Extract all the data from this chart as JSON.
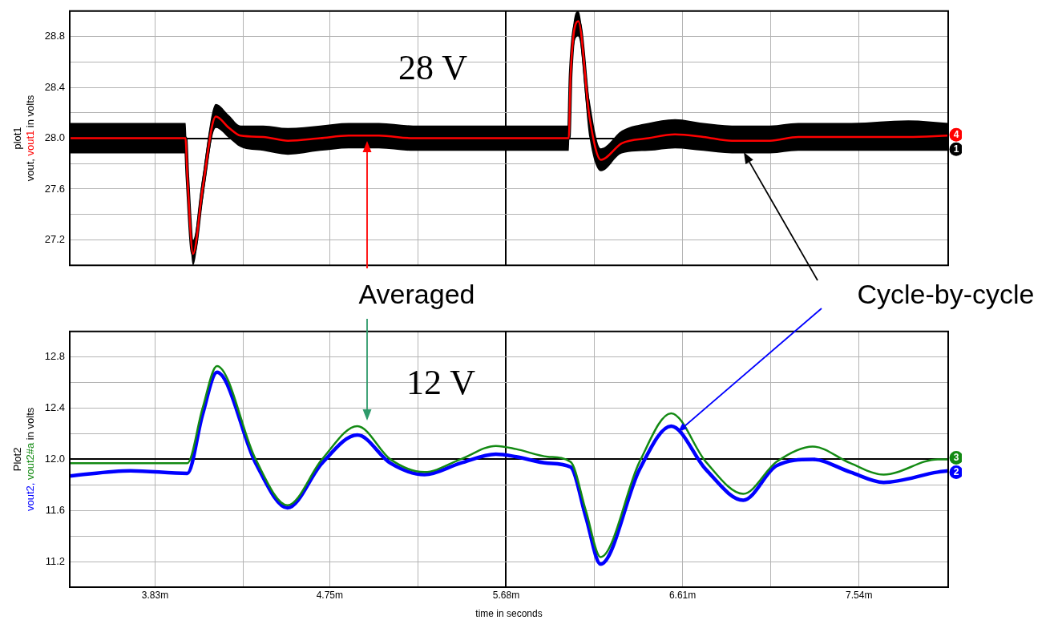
{
  "chart_data": [
    {
      "type": "line",
      "title": "plot1",
      "ylabel": "in volts",
      "x": [
        3.38,
        3.99,
        4.0,
        4.03,
        4.08,
        4.15,
        4.22,
        4.28,
        4.4,
        4.53,
        4.7,
        4.85,
        5.01,
        5.19,
        5.5,
        5.8,
        6.01,
        6.02,
        6.06,
        6.12,
        6.18,
        6.29,
        6.43,
        6.57,
        6.72,
        6.87,
        7.07,
        7.22,
        7.5,
        7.8,
        8.01
      ],
      "series": [
        {
          "name": "vout,",
          "color": "#000000",
          "values": [
            28.0,
            28.0,
            27.7,
            27.09,
            27.6,
            28.17,
            28.08,
            28.02,
            28.01,
            27.98,
            28.0,
            28.02,
            28.02,
            28.0,
            28.0,
            28.0,
            28.0,
            28.5,
            28.92,
            28.16,
            27.83,
            27.96,
            28.0,
            28.03,
            28.01,
            27.98,
            27.98,
            28.01,
            28.01,
            28.01,
            28.02
          ],
          "lower": [
            27.88,
            27.88,
            27.6,
            27.0,
            27.5,
            28.08,
            28.0,
            27.93,
            27.9,
            27.87,
            27.9,
            27.92,
            27.92,
            27.9,
            27.9,
            27.9,
            27.9,
            28.4,
            28.8,
            28.0,
            27.74,
            27.88,
            27.9,
            27.92,
            27.9,
            27.88,
            27.88,
            27.9,
            27.9,
            27.9,
            27.9
          ],
          "upper": [
            28.12,
            28.12,
            27.8,
            27.2,
            27.7,
            28.27,
            28.18,
            28.1,
            28.1,
            28.08,
            28.1,
            28.12,
            28.12,
            28.1,
            28.1,
            28.1,
            28.1,
            28.6,
            29.0,
            28.3,
            27.92,
            28.06,
            28.12,
            28.15,
            28.12,
            28.1,
            28.1,
            28.12,
            28.12,
            28.14,
            28.12
          ]
        },
        {
          "name": "vout1",
          "color": "#ff0000",
          "values": [
            28.0,
            28.0,
            27.7,
            27.09,
            27.6,
            28.17,
            28.08,
            28.02,
            28.01,
            27.98,
            28.0,
            28.02,
            28.02,
            28.0,
            28.0,
            28.0,
            28.0,
            28.5,
            28.92,
            28.16,
            27.83,
            27.96,
            28.0,
            28.03,
            28.01,
            27.98,
            27.98,
            28.01,
            28.01,
            28.01,
            28.02
          ]
        }
      ],
      "xlim": [
        3.38,
        8.01
      ],
      "xticks": [
        3.83,
        4.295,
        4.75,
        5.215,
        5.68,
        6.145,
        6.61,
        7.075,
        7.54
      ],
      "ylim": [
        27.0,
        29.0
      ],
      "yticks": [
        27.2,
        {
          "value": 27.4,
          "label": null
        },
        27.6,
        {
          "value": 27.8,
          "label": null
        },
        {
          "value": 28.0,
          "label": "28.0"
        },
        {
          "value": 28.2,
          "label": null
        },
        28.4,
        {
          "value": 28.6,
          "label": null
        },
        28.8
      ],
      "tick_labels": "y",
      "grid": true,
      "legend": "left",
      "marker": "none",
      "line_style": "solid",
      "annotations": [
        "28 V",
        "Averaged",
        "Cycle-by-cycle",
        {
          "text": "1",
          "y": 27.92
        },
        {
          "text": "4",
          "y": 28.02
        }
      ]
    },
    {
      "type": "line",
      "title": "Plot2",
      "xlabel": "time in seconds",
      "ylabel": "in volts",
      "x": [
        3.38,
        3.7,
        4.0,
        4.08,
        4.156,
        4.36,
        4.528,
        4.71,
        4.896,
        5.07,
        5.25,
        5.44,
        5.626,
        5.733,
        5.9,
        6.02,
        6.1,
        6.178,
        6.383,
        6.55,
        6.733,
        6.93,
        7.105,
        7.296,
        7.494,
        7.67,
        7.955,
        8.01
      ],
      "series": [
        {
          "name": "vout2,",
          "color": "#0000ff",
          "values": [
            11.87,
            11.91,
            11.89,
            12.35,
            12.68,
            11.97,
            11.62,
            11.97,
            12.19,
            11.97,
            11.88,
            11.97,
            12.04,
            12.02,
            11.97,
            11.94,
            11.55,
            11.18,
            11.92,
            12.26,
            11.92,
            11.68,
            11.95,
            12.0,
            11.9,
            11.82,
            11.9,
            11.91
          ]
        },
        {
          "name": "vout2#a",
          "color": "#138a13",
          "values": [
            11.97,
            11.97,
            11.97,
            12.4,
            12.73,
            12.0,
            11.64,
            12.0,
            12.26,
            12.0,
            11.9,
            12.0,
            12.105,
            12.08,
            12.02,
            11.98,
            11.6,
            11.235,
            11.98,
            12.36,
            11.98,
            11.73,
            11.98,
            12.1,
            11.97,
            11.88,
            12.0,
            12.0
          ]
        }
      ],
      "xlim": [
        3.38,
        8.01
      ],
      "xticks": [
        {
          "value": 3.83,
          "label": "3.83m"
        },
        {
          "value": 4.295,
          "label": null
        },
        {
          "value": 4.75,
          "label": "4.75m"
        },
        {
          "value": 5.215,
          "label": null
        },
        {
          "value": 5.68,
          "label": "5.68m"
        },
        {
          "value": 6.145,
          "label": null
        },
        {
          "value": 6.61,
          "label": "6.61m"
        },
        {
          "value": 7.075,
          "label": null
        },
        {
          "value": 7.54,
          "label": "7.54m"
        }
      ],
      "ylim": [
        11.0,
        13.0
      ],
      "yticks": [
        11.2,
        {
          "value": 11.4,
          "label": null
        },
        11.6,
        {
          "value": 11.8,
          "label": null
        },
        {
          "value": 12.0,
          "label": "12.0"
        },
        {
          "value": 12.2,
          "label": null
        },
        12.4,
        {
          "value": 12.6,
          "label": null
        },
        12.8
      ],
      "grid": true,
      "legend": "left",
      "marker": "none",
      "line_style": "solid",
      "annotations": [
        "12 V",
        {
          "text": "2",
          "y": 11.91
        },
        {
          "text": "3",
          "y": 12.0
        }
      ]
    }
  ]
}
